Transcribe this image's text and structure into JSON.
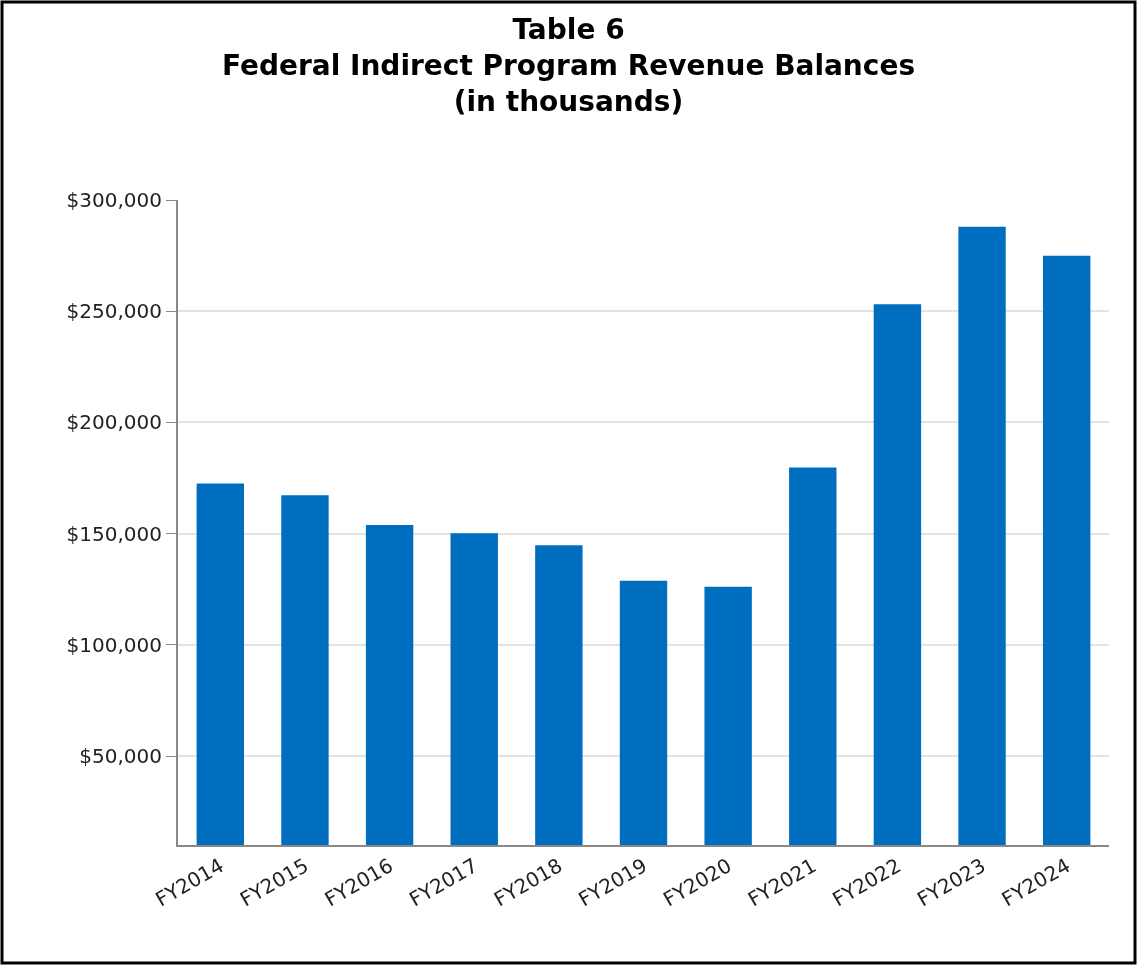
{
  "chart_data": {
    "type": "bar",
    "title": "Table 6\nFederal Indirect Program Revenue Balances\n(in thousands)",
    "categories": [
      "FY2014",
      "FY2015",
      "FY2016",
      "FY2017",
      "FY2018",
      "FY2019",
      "FY2020",
      "FY2021",
      "FY2022",
      "FY2023",
      "FY2024"
    ],
    "values": [
      172500,
      167300,
      153900,
      150200,
      144800,
      128800,
      126100,
      179700,
      253100,
      288000,
      274900
    ],
    "color": "#006ebe",
    "ylim": [
      10000,
      300000
    ],
    "yticks": [
      {
        "value": 50000,
        "label": "$50,000"
      },
      {
        "value": 100000,
        "label": "$100,000"
      },
      {
        "value": 150000,
        "label": "$150,000"
      },
      {
        "value": 200000,
        "label": "$200,000"
      },
      {
        "value": 250000,
        "label": "$250,000"
      },
      {
        "value": 300000,
        "label": "$300,000"
      }
    ],
    "grid": "y"
  }
}
